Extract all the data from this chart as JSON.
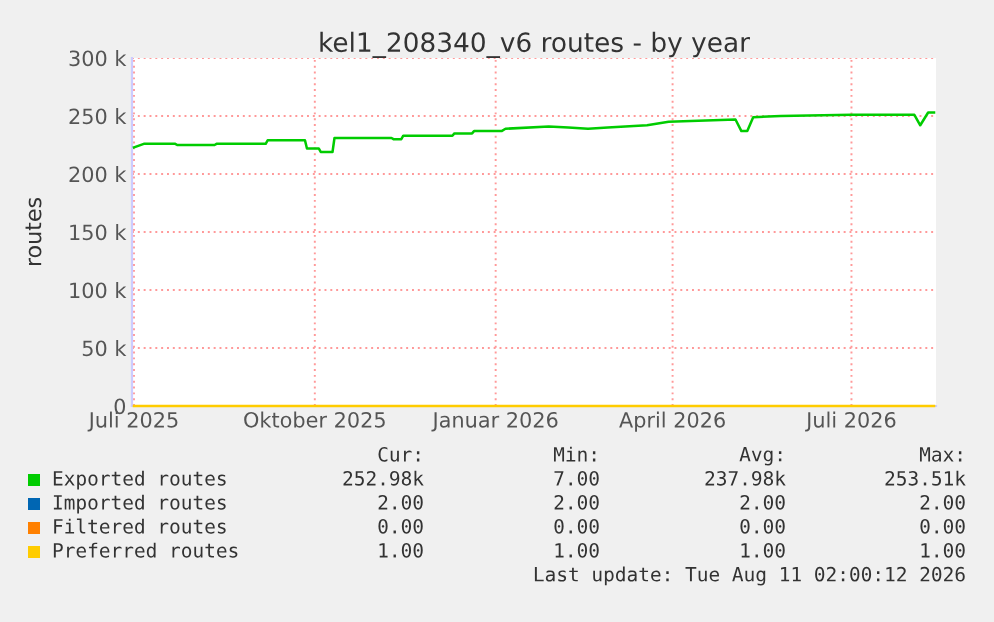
{
  "chart_data": {
    "type": "line",
    "title": "kel1_208340_v6 routes - by year",
    "ylabel": "routes",
    "xlim": [
      "2025-06-30",
      "2026-08-13"
    ],
    "xticks": [
      {
        "value": "2025-07-01",
        "label": "Juli 2025"
      },
      {
        "value": "2025-10-01",
        "label": "Oktober 2025"
      },
      {
        "value": "2026-01-01",
        "label": "Januar 2026"
      },
      {
        "value": "2026-04-01",
        "label": "April 2026"
      },
      {
        "value": "2026-07-01",
        "label": "Juli 2026"
      }
    ],
    "ylim": [
      0,
      300000
    ],
    "yticks": [
      {
        "value": 0,
        "label": "0"
      },
      {
        "value": 50000,
        "label": "50 k"
      },
      {
        "value": 100000,
        "label": "100 k"
      },
      {
        "value": 150000,
        "label": "150 k"
      },
      {
        "value": 200000,
        "label": "200 k"
      },
      {
        "value": 250000,
        "label": "250 k"
      },
      {
        "value": 300000,
        "label": "300 k"
      }
    ],
    "grid": true,
    "legend": "bottom",
    "marker": "none",
    "line_style": "solid",
    "series": [
      {
        "name": "Exported routes",
        "color": "#00cc00",
        "x": [
          "2025-07-01",
          "2025-07-06",
          "2025-07-22",
          "2025-07-23",
          "2025-08-11",
          "2025-08-12",
          "2025-09-06",
          "2025-09-07",
          "2025-09-26",
          "2025-09-27",
          "2025-10-03",
          "2025-10-04",
          "2025-10-10",
          "2025-10-11",
          "2025-11-09",
          "2025-11-10",
          "2025-11-14",
          "2025-11-15",
          "2025-12-10",
          "2025-12-11",
          "2025-12-20",
          "2025-12-21",
          "2026-01-04",
          "2026-01-06",
          "2026-01-28",
          "2026-02-07",
          "2026-02-17",
          "2026-02-27",
          "2026-03-19",
          "2026-03-30",
          "2026-05-03",
          "2026-05-06",
          "2026-05-09",
          "2026-05-12",
          "2026-05-26",
          "2026-07-01",
          "2026-08-02",
          "2026-08-05",
          "2026-08-09",
          "2026-08-12"
        ],
        "values": [
          223000,
          226000,
          226000,
          225000,
          225000,
          226000,
          226000,
          229000,
          229000,
          222000,
          222000,
          219000,
          219000,
          231000,
          231000,
          230000,
          230000,
          233000,
          233000,
          235000,
          235000,
          237000,
          237000,
          239000,
          241000,
          240000,
          239000,
          240000,
          242000,
          245000,
          247000,
          237000,
          237000,
          249000,
          250000,
          251000,
          251000,
          242000,
          253000,
          253000
        ]
      },
      {
        "name": "Imported routes",
        "color": "#0066b3"
      },
      {
        "name": "Filtered routes",
        "color": "#ff8000"
      },
      {
        "name": "Preferred routes",
        "color": "#ffcc00",
        "x": [
          "2025-07-01",
          "2026-08-12"
        ],
        "values": [
          1,
          1
        ]
      }
    ],
    "annotations": [
      "Cur:",
      "Min:",
      "Avg:",
      "Max:",
      "252.98k",
      "7.00",
      "237.98k",
      "253.51k",
      "2.00",
      "2.00",
      "2.00",
      "2.00",
      "0.00",
      "0.00",
      "0.00",
      "0.00",
      "1.00",
      "1.00",
      "1.00",
      "1.00",
      "Last update: Tue Aug 11 02:00:12 2026"
    ]
  }
}
